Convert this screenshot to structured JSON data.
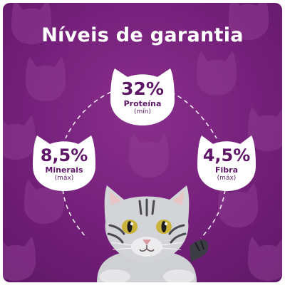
{
  "title": "Níveis de garantia",
  "nutrients": {
    "protein": {
      "value": "32%",
      "label": "Proteína",
      "qualifier": "(mín)"
    },
    "minerals": {
      "value": "8,5%",
      "label": "Minerais",
      "qualifier": "(máx)"
    },
    "fiber": {
      "value": "4,5%",
      "label": "Fibra",
      "qualifier": "(máx)"
    }
  },
  "colors": {
    "background": "#74207a",
    "badge": "#ffffff",
    "badge_text": "#5e1766",
    "pattern": "#8e3c92"
  },
  "icons": [
    "cat-head-badge-icon",
    "cat-silhouette-pattern-icon",
    "tabby-cat-illustration"
  ]
}
